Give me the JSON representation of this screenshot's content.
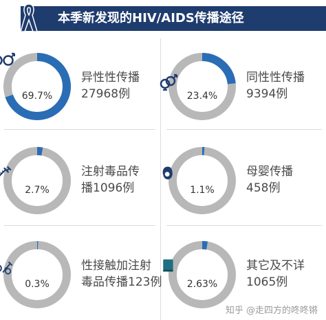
{
  "header": {
    "title": "本季新发现的HIV/AIDS传播途径"
  },
  "colors": {
    "header_bg": "#1f3c6e",
    "ring_track": "#b8b8b8",
    "ring_fill": "#2a6db5",
    "icon": "#1f3c6e"
  },
  "chart_data": {
    "type": "pie",
    "categories": [
      "异性性传播",
      "同性性传播",
      "注射毒品传播",
      "母婴传播",
      "性接触加注射毒品传播",
      "其它及不详"
    ],
    "series": [
      {
        "values": [
          69.7,
          23.4,
          2.7,
          1.1,
          0.3,
          2.63
        ],
        "counts": [
          27968,
          9394,
          1096,
          458,
          123,
          1065
        ]
      }
    ],
    "items": [
      {
        "pct_label": "69.7%",
        "pct": 69.7,
        "line1": "异性性传播",
        "line2": "27968例",
        "icon": "heterosexual-icon"
      },
      {
        "pct_label": "23.4%",
        "pct": 23.4,
        "line1": "同性性传播",
        "line2": "9394例",
        "icon": "homosexual-icon"
      },
      {
        "pct_label": "2.7%",
        "pct": 2.7,
        "line1": "注射毒品传",
        "line2": "播1096例",
        "icon": "syringe-icon"
      },
      {
        "pct_label": "1.1%",
        "pct": 1.1,
        "line1": "母婴传播",
        "line2": "458例",
        "icon": "mother-child-icon"
      },
      {
        "pct_label": "0.3%",
        "pct": 0.3,
        "line1": "性接触加注射",
        "line2": "毒品传播123例",
        "icon": "sex-and-syringe-icon"
      },
      {
        "pct_label": "2.63%",
        "pct": 2.63,
        "line1": "其它及不详",
        "line2": "1065例",
        "icon": "book-icon"
      }
    ]
  },
  "watermark": "知乎 @走四方的咚咚锵"
}
